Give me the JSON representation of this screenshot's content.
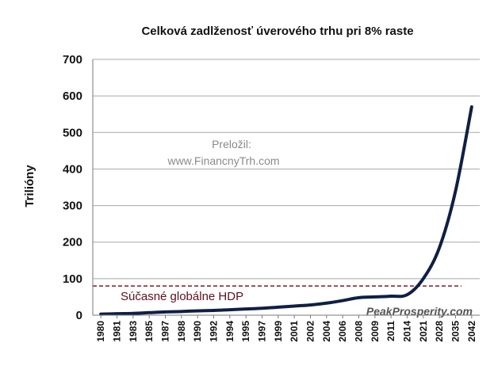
{
  "chart_data": {
    "type": "line",
    "title": "Celková zadlženosť úverového trhu pri 8% raste",
    "ylabel": "Trilióny",
    "xlabel": "",
    "ylim": [
      0,
      700
    ],
    "yticks": [
      "0",
      "100",
      "200",
      "300",
      "400",
      "500",
      "600",
      "700"
    ],
    "grid": true,
    "categories": [
      "1980",
      "1981",
      "1983",
      "1985",
      "1987",
      "1988",
      "1990",
      "1992",
      "1994",
      "1995",
      "1997",
      "1999",
      "2001",
      "2002",
      "2004",
      "2006",
      "2008",
      "2009",
      "2011",
      "2014",
      "2021",
      "2028",
      "2035",
      "2042"
    ],
    "series": [
      {
        "color": "#0f1f45",
        "values": [
          3,
          4,
          5,
          7,
          9,
          10,
          12,
          13,
          15,
          17,
          19,
          22,
          25,
          28,
          33,
          40,
          48,
          50,
          52,
          56,
          100,
          185,
          340,
          570
        ]
      }
    ],
    "reference_line": {
      "value": 80,
      "label": "Súčasné globálne HDP",
      "color": "#7a1a2a"
    },
    "annotations": {
      "credit_line1": "Preložil:",
      "credit_line2": "www.FinancnyTrh.com",
      "source": "PeakProsperity.com"
    }
  }
}
